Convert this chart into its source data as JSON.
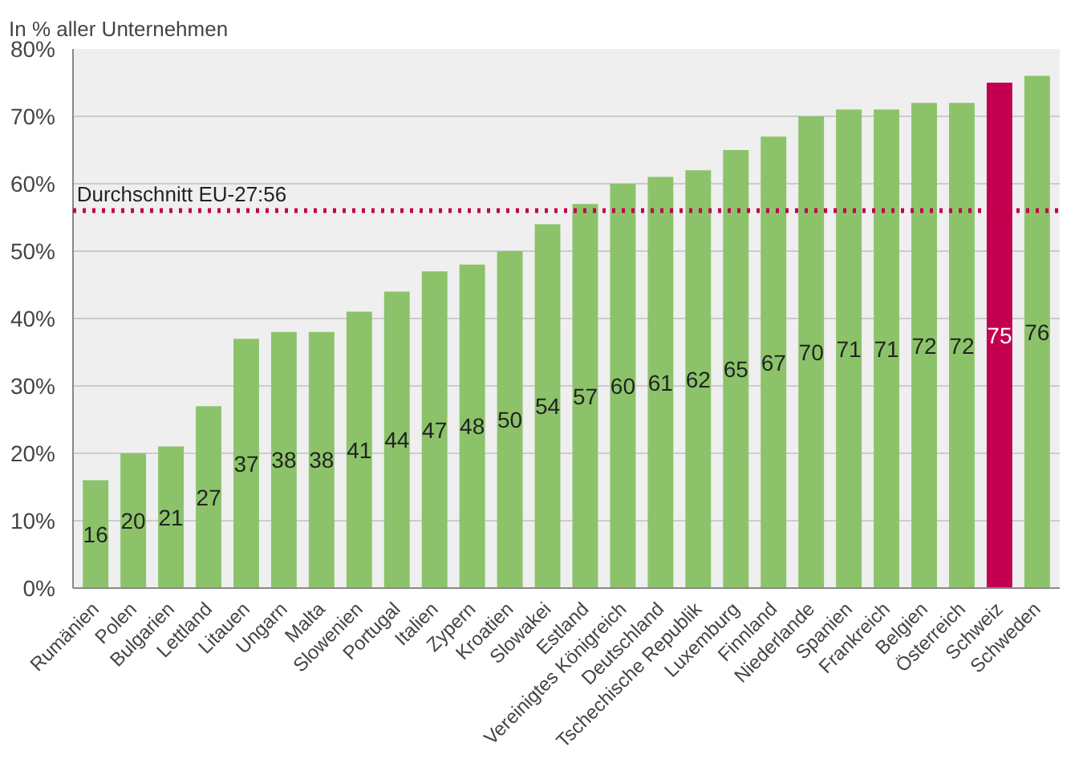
{
  "chart_data": {
    "type": "bar",
    "title": "In % aller Unternehmen",
    "categories": [
      "Rumänien",
      "Polen",
      "Bulgarien",
      "Lettland",
      "Litauen",
      "Ungarn",
      "Malta",
      "Slowenien",
      "Portugal",
      "Italien",
      "Zypern",
      "Kroatien",
      "Slowakei",
      "Estland",
      "Vereinigtes Königreich",
      "Deutschland",
      "Tschechische Republik",
      "Luxemburg",
      "Finnland",
      "Niederlande",
      "Spanien",
      "Frankreich",
      "Belgien",
      "Österreich",
      "Schweiz",
      "Schweden"
    ],
    "values": [
      16,
      20,
      21,
      27,
      37,
      38,
      38,
      41,
      44,
      47,
      48,
      50,
      54,
      57,
      60,
      61,
      62,
      65,
      67,
      70,
      71,
      71,
      72,
      72,
      75,
      76
    ],
    "colors": [
      "#8cc36a",
      "#8cc36a",
      "#8cc36a",
      "#8cc36a",
      "#8cc36a",
      "#8cc36a",
      "#8cc36a",
      "#8cc36a",
      "#8cc36a",
      "#8cc36a",
      "#8cc36a",
      "#8cc36a",
      "#8cc36a",
      "#8cc36a",
      "#8cc36a",
      "#8cc36a",
      "#8cc36a",
      "#8cc36a",
      "#8cc36a",
      "#8cc36a",
      "#8cc36a",
      "#8cc36a",
      "#8cc36a",
      "#8cc36a",
      "#c2004f",
      "#8cc36a"
    ],
    "ylim": [
      0,
      80
    ],
    "yticks": [
      {
        "value": 0,
        "label": "0%"
      },
      {
        "value": 10,
        "label": "10%"
      },
      {
        "value": 20,
        "label": "20%"
      },
      {
        "value": 30,
        "label": "30%"
      },
      {
        "value": 40,
        "label": "40%"
      },
      {
        "value": 50,
        "label": "50%"
      },
      {
        "value": 60,
        "label": "60%"
      },
      {
        "value": 70,
        "label": "70%"
      },
      {
        "value": 80,
        "label": "80%"
      }
    ],
    "grid": "y",
    "data_labels": true,
    "ref_lines": [
      {
        "axis": "y",
        "value": 56,
        "label": "Durchschnitt EU-27:56",
        "color": "#c2004f",
        "line_style": "dotted"
      }
    ]
  }
}
